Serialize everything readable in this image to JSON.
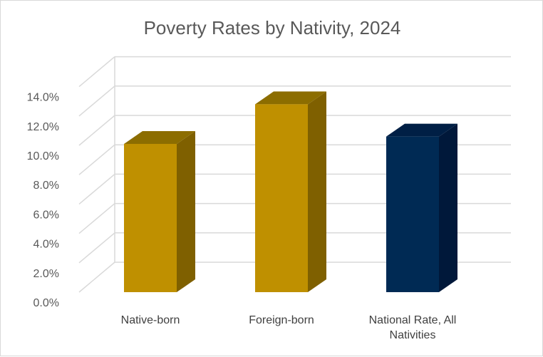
{
  "chart_data": {
    "type": "bar",
    "title": "Poverty Rates by Nativity, 2024",
    "categories": [
      "Native-born",
      "Foreign-born",
      "National Rate, All Nativities"
    ],
    "category_label_lines": [
      [
        "Native-born"
      ],
      [
        "Foreign-born"
      ],
      [
        "National Rate, All",
        "Nativities"
      ]
    ],
    "values": [
      10.1,
      12.8,
      10.6
    ],
    "y_tick_labels": [
      "0.0%",
      "2.0%",
      "4.0%",
      "6.0%",
      "8.0%",
      "10.0%",
      "12.0%",
      "14.0%"
    ],
    "ylim": [
      0,
      14
    ],
    "grid": true,
    "legend": "none",
    "xlabel": "",
    "ylabel": "",
    "style": "3d-column",
    "bar_colors": [
      "#bf9000",
      "#bf9000",
      "#002a54"
    ],
    "bar_side_colors": [
      "#7f6000",
      "#7f6000",
      "#00183a"
    ],
    "bar_top_colors": [
      "#8c6d00",
      "#8c6d00",
      "#001f45"
    ]
  }
}
